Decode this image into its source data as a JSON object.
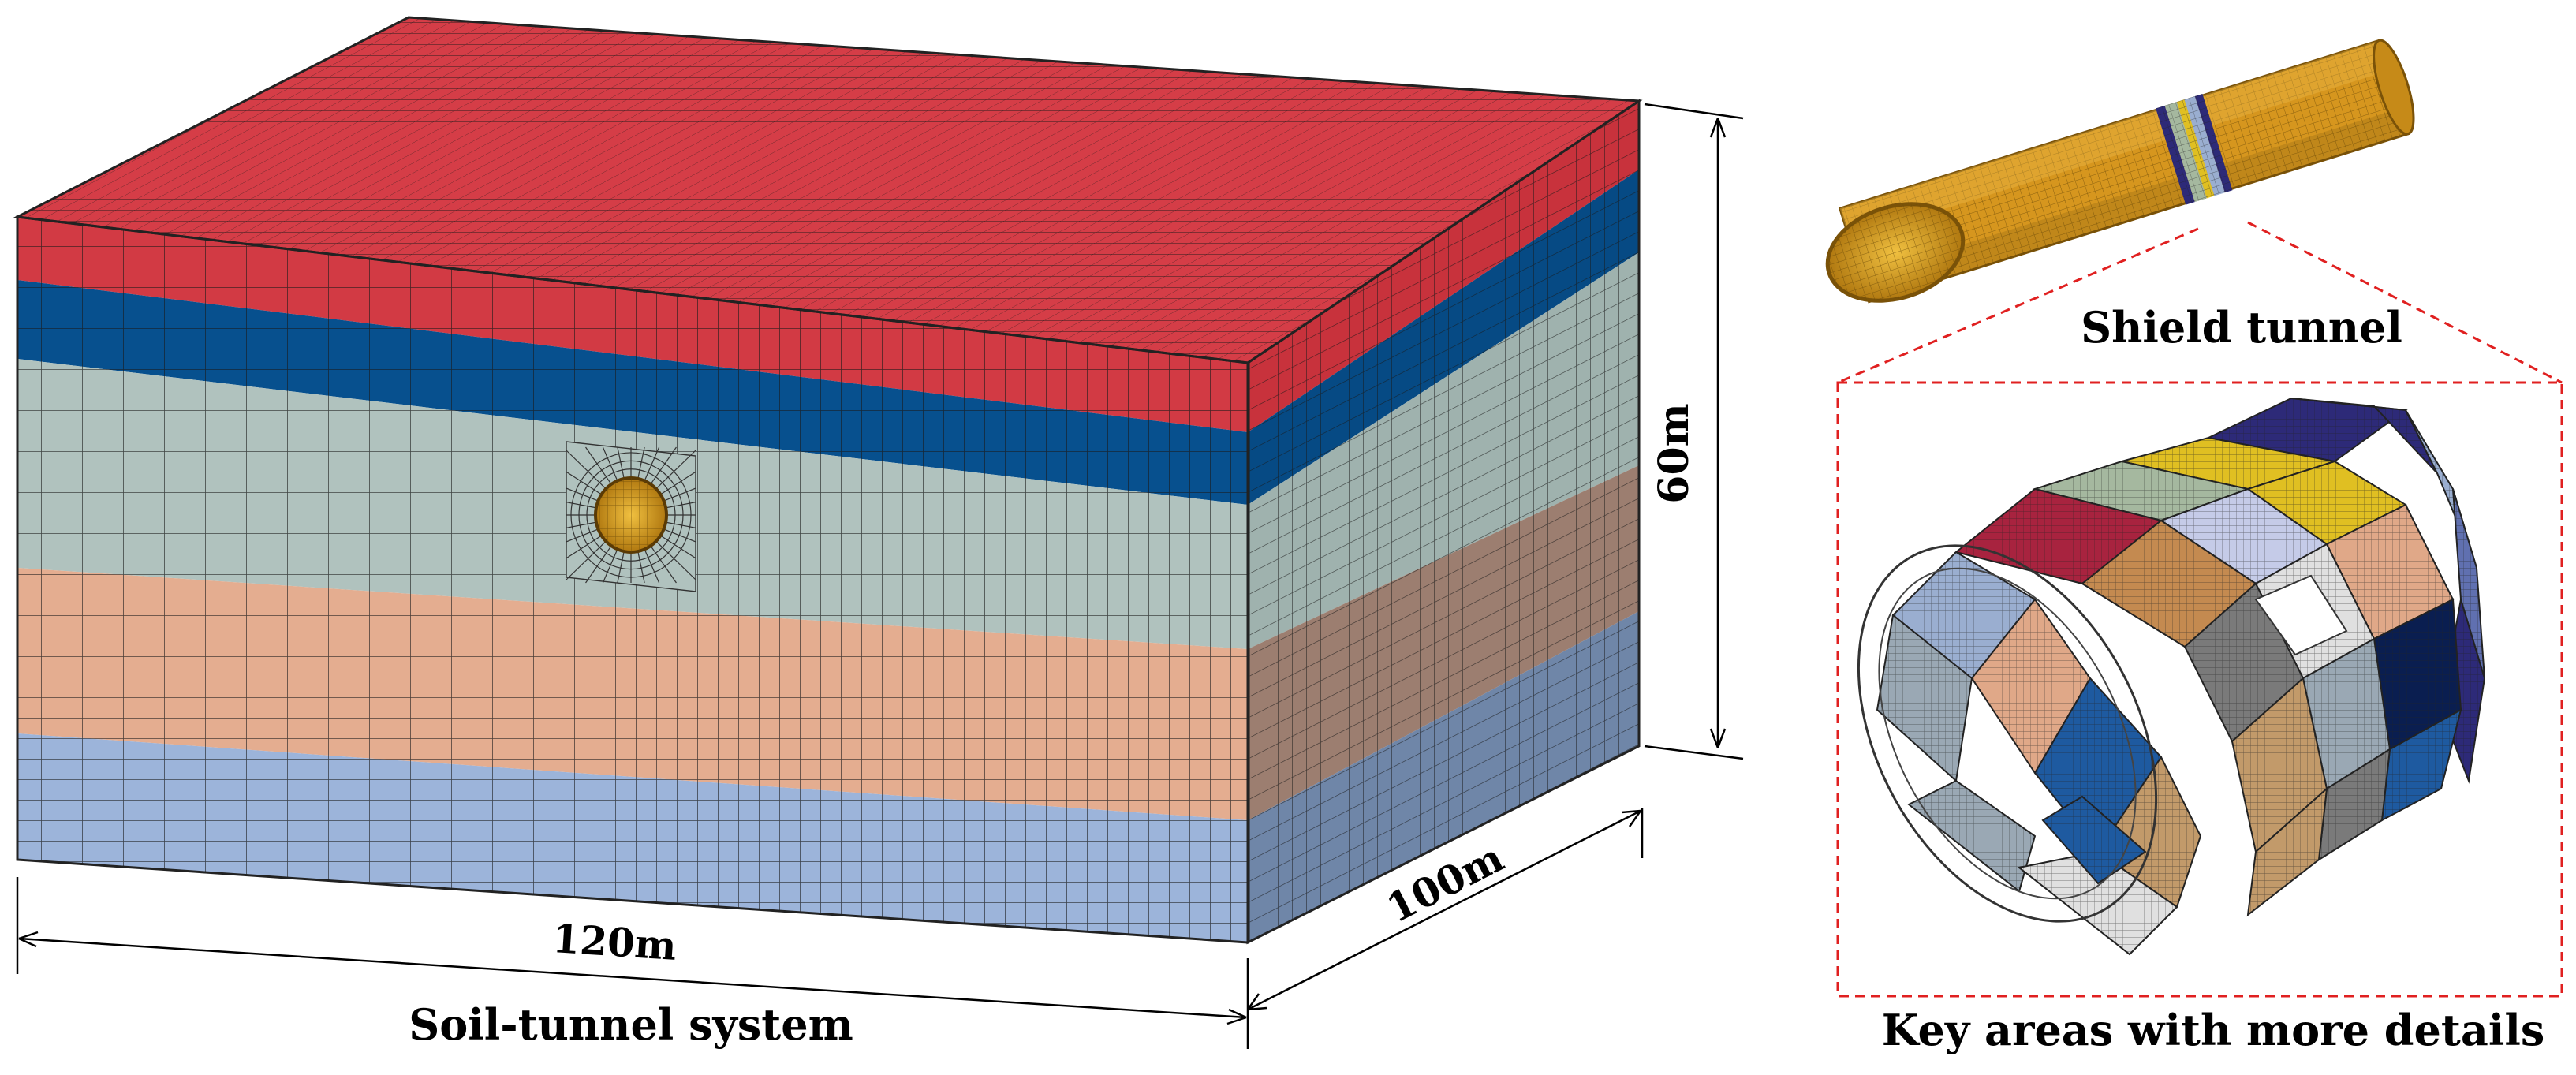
{
  "labels": {
    "soil_system": "Soil-tunnel system",
    "shield_tunnel": "Shield tunnel",
    "key_areas": "Key areas with more details"
  },
  "dimensions": {
    "width": "120m",
    "depth": "100m",
    "height": "60m"
  },
  "soil_layers": [
    {
      "color_front": "#d23a44",
      "color_side": "#c8323c"
    },
    {
      "color_front": "#07508e",
      "color_side": "#064a84"
    },
    {
      "color_front": "#b0c2be",
      "color_side": "#9fb2ae"
    },
    {
      "color_front": "#e4ad90",
      "color_side": "#9c7e70"
    },
    {
      "color_front": "#9cb4da",
      "color_side": "#6f86a8"
    }
  ],
  "top_color": "#d53d47",
  "tunnel_color": "#d6961e",
  "segment_colors": [
    "#a8233f",
    "#a5b89f",
    "#e0bf22",
    "#2d2a78",
    "#9aaed0",
    "#e0a888",
    "#7a7a7a",
    "#1e5aa0",
    "#c5cbe8",
    "#e0e0e0",
    "#c48a50",
    "#6070b0",
    "#9aa8b4",
    "#0a1e50",
    "#c29a6a"
  ],
  "callout_color": "#e02020"
}
